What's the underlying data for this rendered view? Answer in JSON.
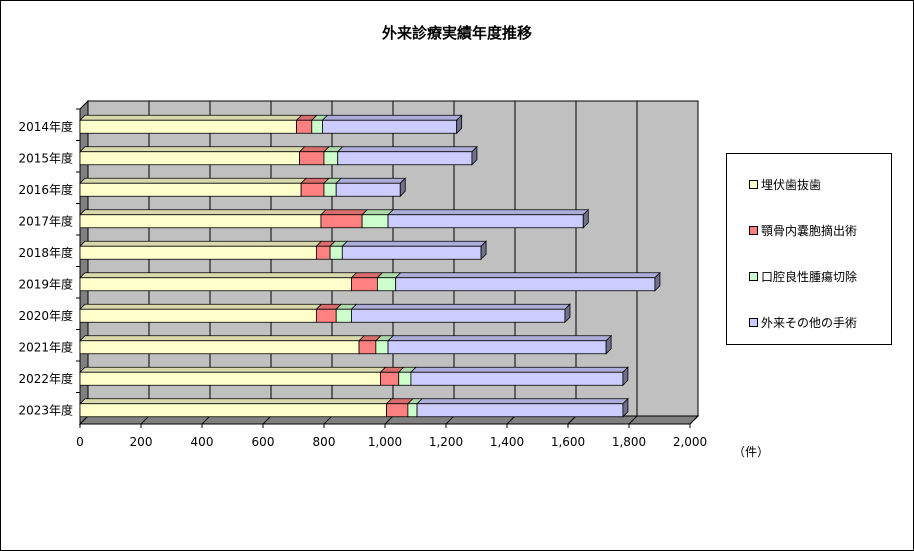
{
  "chart_data": {
    "type": "bar",
    "orientation": "horizontal",
    "stacked": true,
    "title": "外来診療実績年度推移",
    "unit_label": "（件）",
    "categories": [
      "2014年度",
      "2015年度",
      "2016年度",
      "2017年度",
      "2018年度",
      "2019年度",
      "2020年度",
      "2021年度",
      "2022年度",
      "2023年度"
    ],
    "series": [
      {
        "name": "埋伏歯抜歯",
        "color": "#FFFFCC",
        "values": [
          710,
          720,
          725,
          790,
          775,
          890,
          775,
          915,
          985,
          1005
        ]
      },
      {
        "name": "顎骨内嚢胞摘出術",
        "color": "#FF8080",
        "values": [
          50,
          80,
          75,
          135,
          45,
          85,
          65,
          55,
          60,
          70
        ]
      },
      {
        "name": "口腔良性腫瘍切除",
        "color": "#CCFFCC",
        "values": [
          35,
          45,
          40,
          85,
          40,
          60,
          50,
          40,
          40,
          30
        ]
      },
      {
        "name": "外来その他の手術",
        "color": "#CCCCFF",
        "values": [
          440,
          440,
          210,
          640,
          455,
          850,
          700,
          715,
          695,
          675
        ]
      }
    ],
    "xlim": [
      0,
      2000
    ],
    "x_ticks": [
      "0",
      "200",
      "400",
      "600",
      "800",
      "1,000",
      "1,200",
      "1,400",
      "1,600",
      "1,800",
      "2,000"
    ],
    "grid": true,
    "legend_position": "right"
  }
}
